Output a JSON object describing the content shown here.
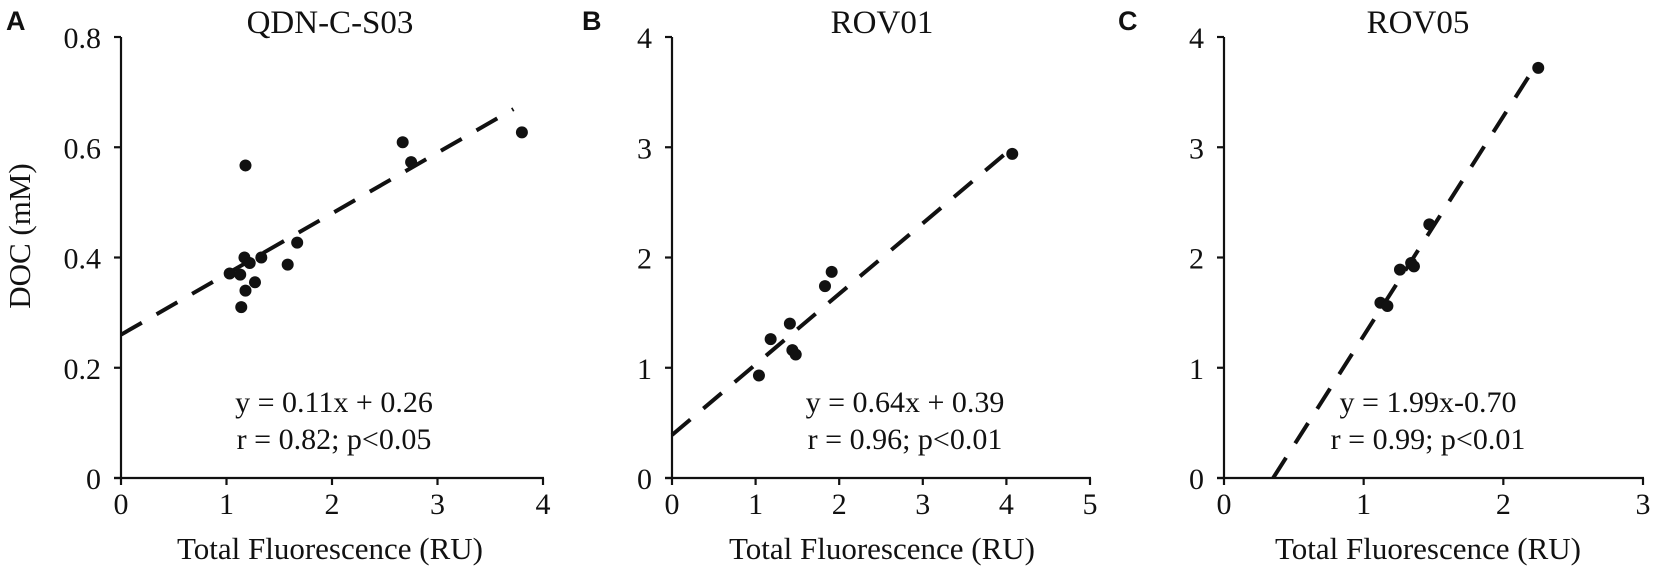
{
  "figure": {
    "ylabel": "DOC (mM)",
    "xlabel": "Total Fluorescence (RU)"
  },
  "chart_data": [
    {
      "type": "scatter",
      "panel": "A",
      "title": "QDN-C-S03",
      "xlabel": "Total Fluorescence (RU)",
      "ylabel": "DOC (mM)",
      "xlim": [
        0,
        4
      ],
      "ylim": [
        0,
        0.8
      ],
      "xticks": [
        0,
        1,
        2,
        3,
        4
      ],
      "yticks": [
        0,
        0.2,
        0.4,
        0.6,
        0.8
      ],
      "ytick_labels": [
        "0",
        "0.2",
        "0.4",
        "0.6",
        "0.8"
      ],
      "grid": false,
      "points": [
        {
          "x": 1.03,
          "y": 0.371
        },
        {
          "x": 1.13,
          "y": 0.369
        },
        {
          "x": 1.14,
          "y": 0.31
        },
        {
          "x": 1.17,
          "y": 0.4
        },
        {
          "x": 1.18,
          "y": 0.34
        },
        {
          "x": 1.18,
          "y": 0.567
        },
        {
          "x": 1.22,
          "y": 0.39
        },
        {
          "x": 1.27,
          "y": 0.355
        },
        {
          "x": 1.33,
          "y": 0.4
        },
        {
          "x": 1.58,
          "y": 0.387
        },
        {
          "x": 1.67,
          "y": 0.427
        },
        {
          "x": 2.67,
          "y": 0.609
        },
        {
          "x": 2.75,
          "y": 0.573
        },
        {
          "x": 3.8,
          "y": 0.627
        }
      ],
      "fit": {
        "slope": 0.11,
        "intercept": 0.26,
        "x_range": [
          0,
          3.72
        ],
        "style": "dashed"
      },
      "annotation": [
        "y = 0.11x + 0.26",
        "r = 0.82; p<0.05"
      ]
    },
    {
      "type": "scatter",
      "panel": "B",
      "title": "ROV01",
      "xlabel": "Total Fluorescence (RU)",
      "ylabel": "",
      "xlim": [
        0,
        5
      ],
      "ylim": [
        0,
        4
      ],
      "xticks": [
        0,
        1,
        2,
        3,
        4,
        5
      ],
      "yticks": [
        0,
        1,
        2,
        3,
        4
      ],
      "ytick_labels": [
        "0",
        "1",
        "2",
        "3",
        "4"
      ],
      "grid": false,
      "points": [
        {
          "x": 1.04,
          "y": 0.93
        },
        {
          "x": 1.18,
          "y": 1.26
        },
        {
          "x": 1.41,
          "y": 1.4
        },
        {
          "x": 1.44,
          "y": 1.16
        },
        {
          "x": 1.48,
          "y": 1.12
        },
        {
          "x": 1.83,
          "y": 1.74
        },
        {
          "x": 1.91,
          "y": 1.87
        },
        {
          "x": 4.07,
          "y": 2.94
        }
      ],
      "fit": {
        "slope": 0.64,
        "intercept": 0.39,
        "x_range": [
          0,
          4.0
        ],
        "style": "dashed"
      },
      "annotation": [
        "y = 0.64x + 0.39",
        "r = 0.96; p<0.01"
      ]
    },
    {
      "type": "scatter",
      "panel": "C",
      "title": "ROV05",
      "xlabel": "Total Fluorescence (RU)",
      "ylabel": "",
      "xlim": [
        0,
        3
      ],
      "ylim": [
        0,
        4
      ],
      "xticks": [
        0,
        1,
        2,
        3
      ],
      "yticks": [
        0,
        1,
        2,
        3,
        4
      ],
      "ytick_labels": [
        "0",
        "1",
        "2",
        "3",
        "4"
      ],
      "grid": false,
      "points": [
        {
          "x": 1.12,
          "y": 1.59
        },
        {
          "x": 1.17,
          "y": 1.56
        },
        {
          "x": 1.26,
          "y": 1.89
        },
        {
          "x": 1.34,
          "y": 1.95
        },
        {
          "x": 1.36,
          "y": 1.92
        },
        {
          "x": 1.47,
          "y": 2.3
        },
        {
          "x": 2.25,
          "y": 3.72
        }
      ],
      "fit": {
        "slope": 1.99,
        "intercept": -0.7,
        "x_range": [
          0.352,
          2.21
        ],
        "style": "dashed"
      },
      "annotation": [
        "y = 1.99x-0.70",
        "r = 0.99; p<0.01"
      ]
    }
  ]
}
